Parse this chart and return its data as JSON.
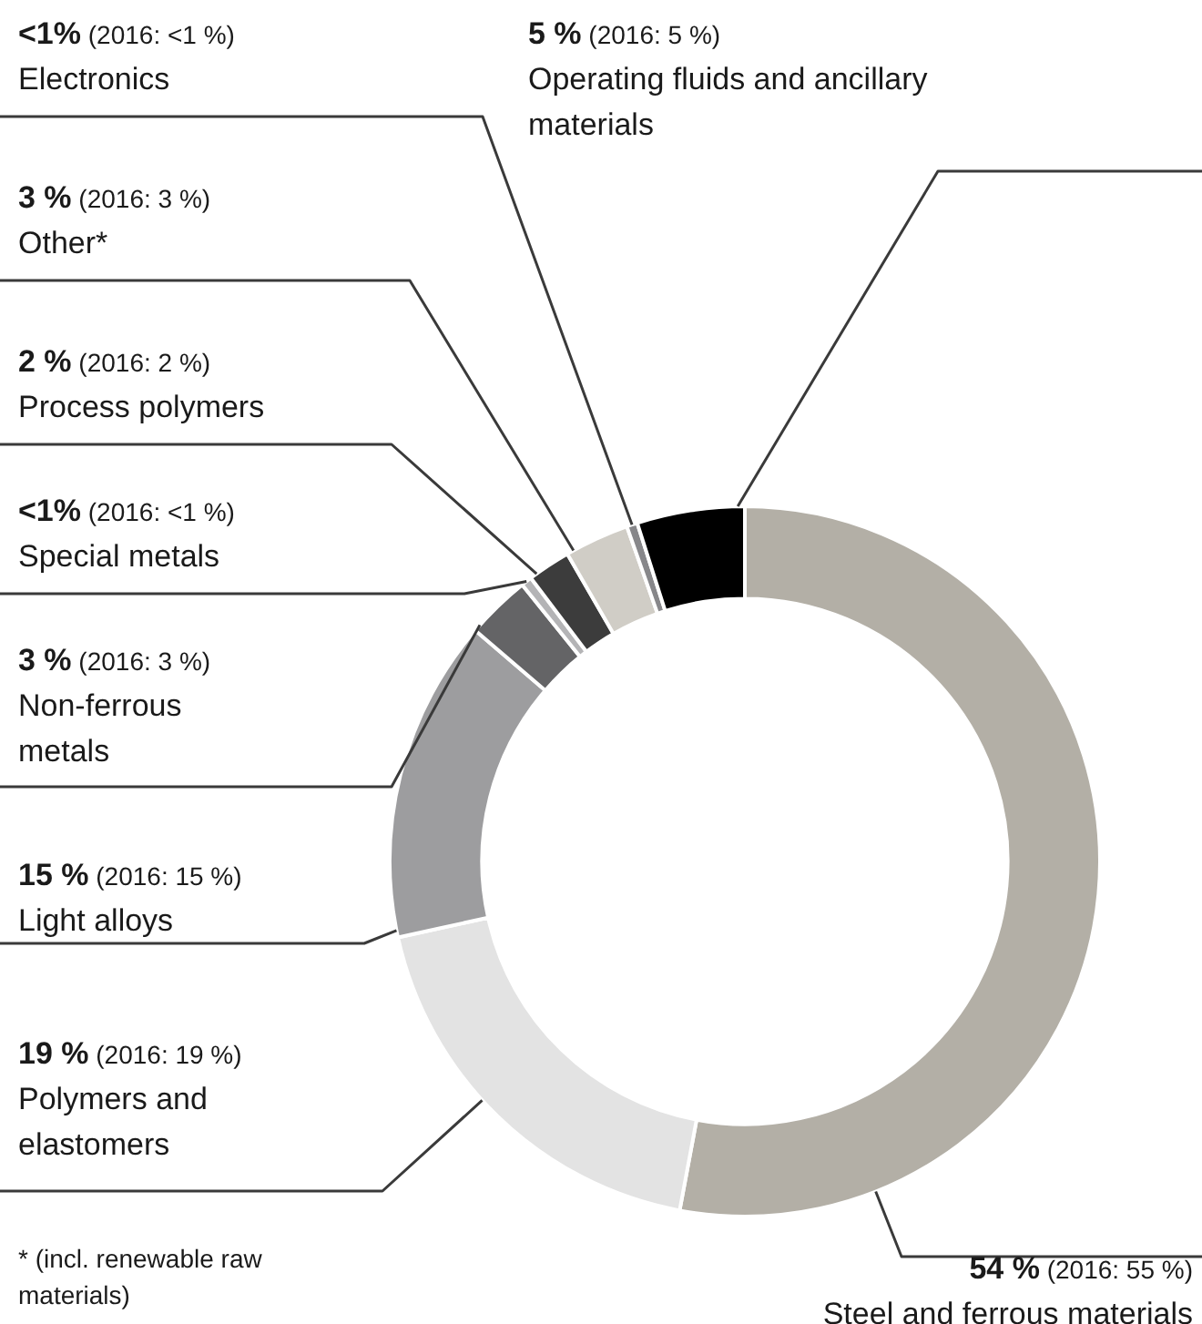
{
  "chart_data": {
    "type": "donut",
    "categories": [
      "Steel and ferrous materials",
      "Polymers and elastomers",
      "Light alloys",
      "Non-ferrous metals",
      "Special metals",
      "Process polymers",
      "Other*",
      "Electronics",
      "Operating fluids and ancillary materials"
    ],
    "values": [
      54,
      19,
      15,
      3,
      0.5,
      2,
      3,
      0.5,
      5
    ],
    "value_labels": [
      "54 % (2016: 55 %)",
      "19 % (2016: 19 %)",
      "15 % (2016: 15 %)",
      "3 % (2016: 3 %)",
      "<1% (2016: <1 %)",
      "2 % (2016: 2 %)",
      "3 % (2016: 3 %)",
      "<1% (2016: <1 %)",
      "5 % (2016: 5 %)"
    ],
    "colors": [
      "#b3afa6",
      "#e3e3e3",
      "#9d9d9f",
      "#646466",
      "#b4b4b6",
      "#3c3c3c",
      "#d0cdc6",
      "#87878a",
      "#000000"
    ],
    "annotations": [
      "* (incl. renewable raw materials)"
    ],
    "legend": false
  }
}
